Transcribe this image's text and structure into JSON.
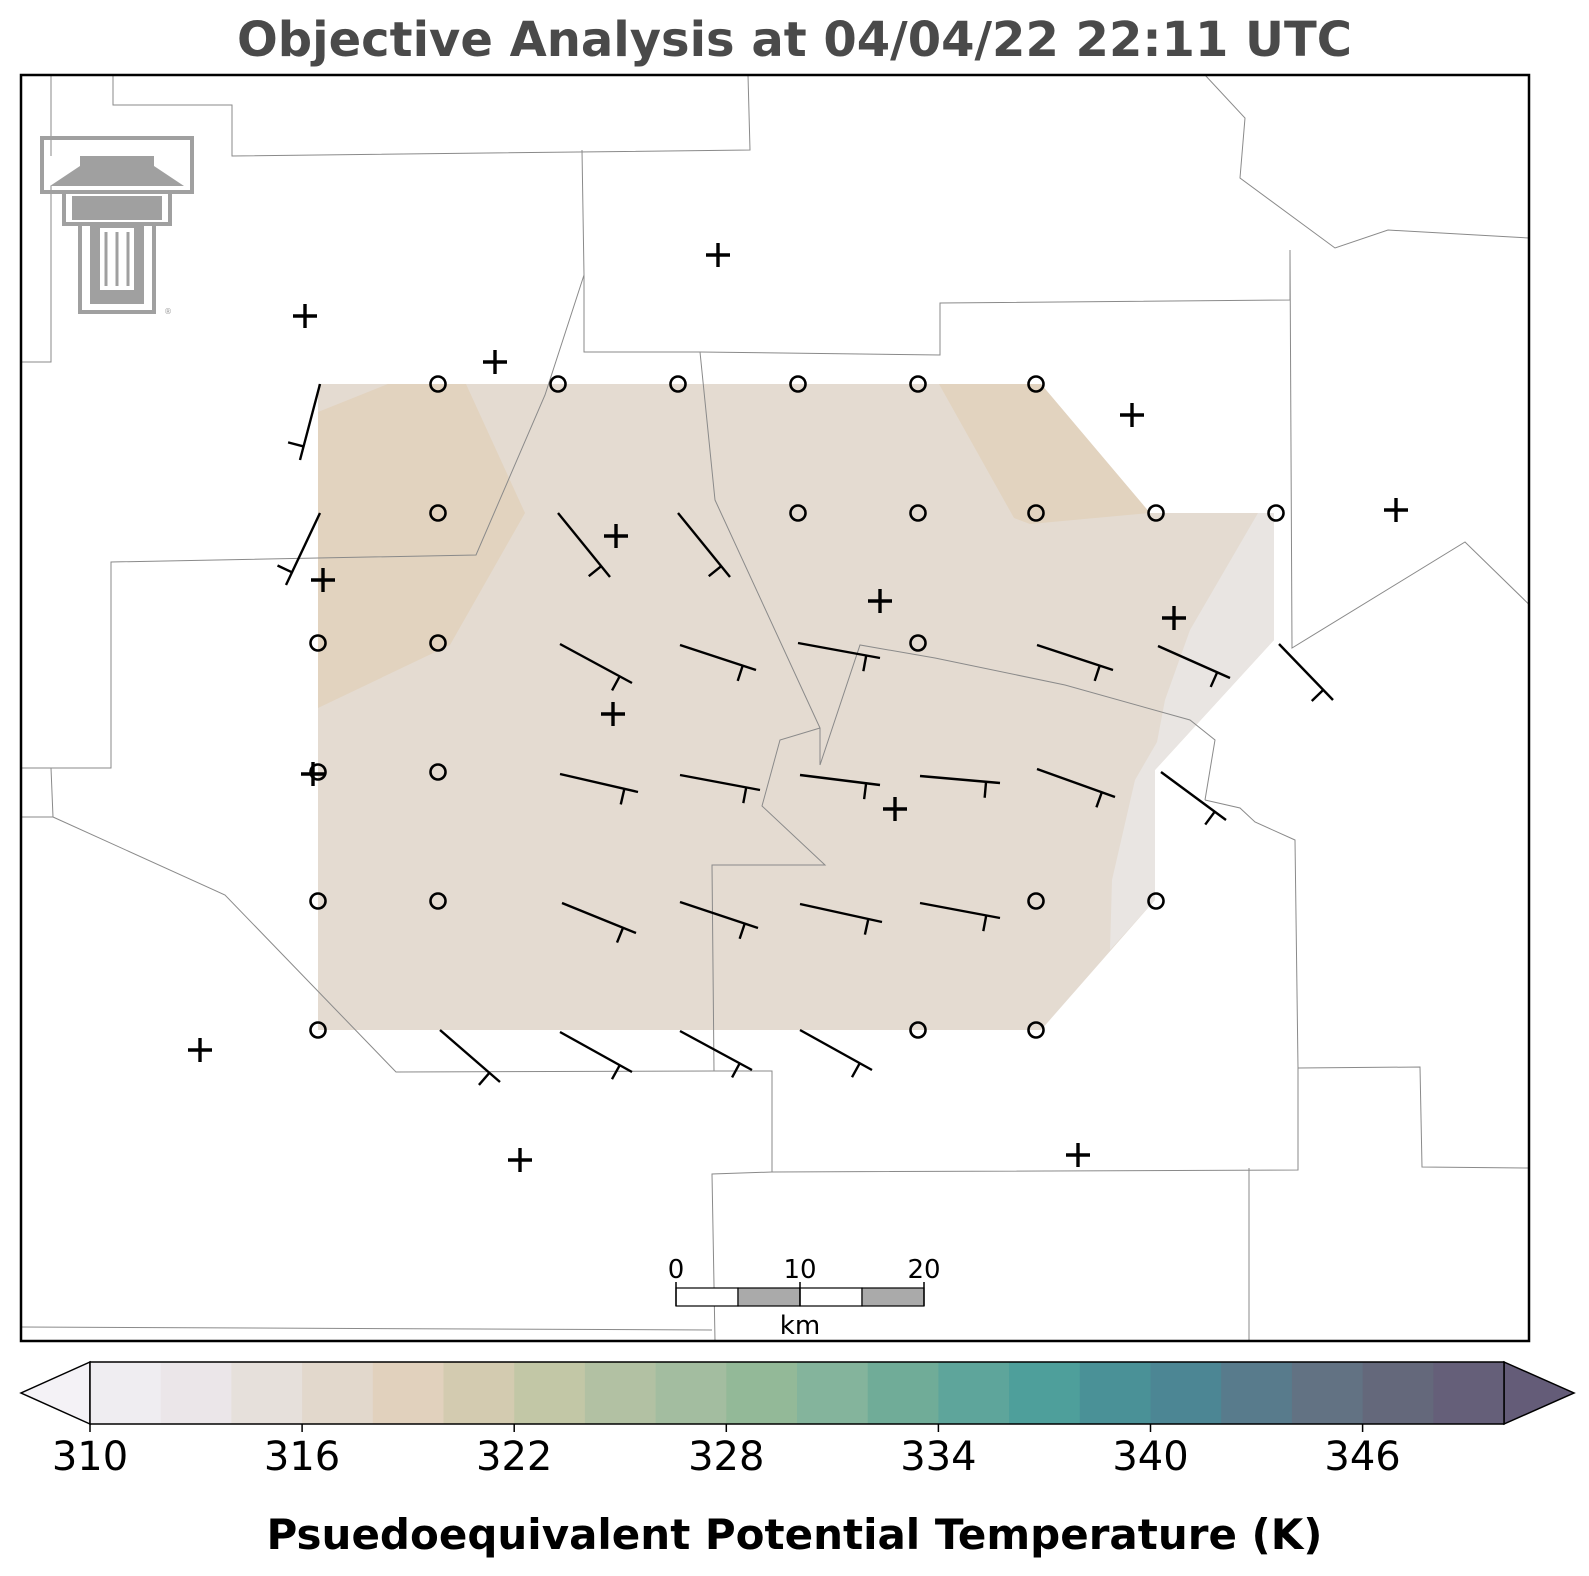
{
  "title": "Objective Analysis at 04/04/22 22:11 UTC",
  "logo": {
    "icon": "double-t-logo-icon",
    "color": "#a0a0a0"
  },
  "scale_bar": {
    "ticks": [
      "0",
      "10",
      "20"
    ],
    "unit": "km"
  },
  "colorbar": {
    "label": "Psuedoequivalent Potential Temperature (K)",
    "ticks": [
      "310",
      "316",
      "322",
      "328",
      "334",
      "340",
      "346"
    ],
    "extend": "both",
    "colors": [
      "#efedf1",
      "#ebe6e9",
      "#e6e0db",
      "#e2d8cc",
      "#e1d1bd",
      "#d3cbb0",
      "#c2c7a6",
      "#b2c1a3",
      "#a3bda0",
      "#93b998",
      "#84b49c",
      "#70ac98",
      "#5ea59b",
      "#4e9f9b",
      "#4a9197",
      "#4c8694",
      "#587b8c",
      "#627283",
      "#64687b",
      "#655f79"
    ],
    "under_color": "#f4f2f6",
    "over_color": "#645c78"
  },
  "analysis": {
    "fill_main": "#e4dbd1",
    "fill_warm": "#e2d3bf",
    "fill_cool": "#e9e5e2"
  },
  "wind_barbs": {
    "calm_symbol": "circle",
    "symbols": "station-barbs"
  },
  "stations": {
    "symbol": "+"
  }
}
